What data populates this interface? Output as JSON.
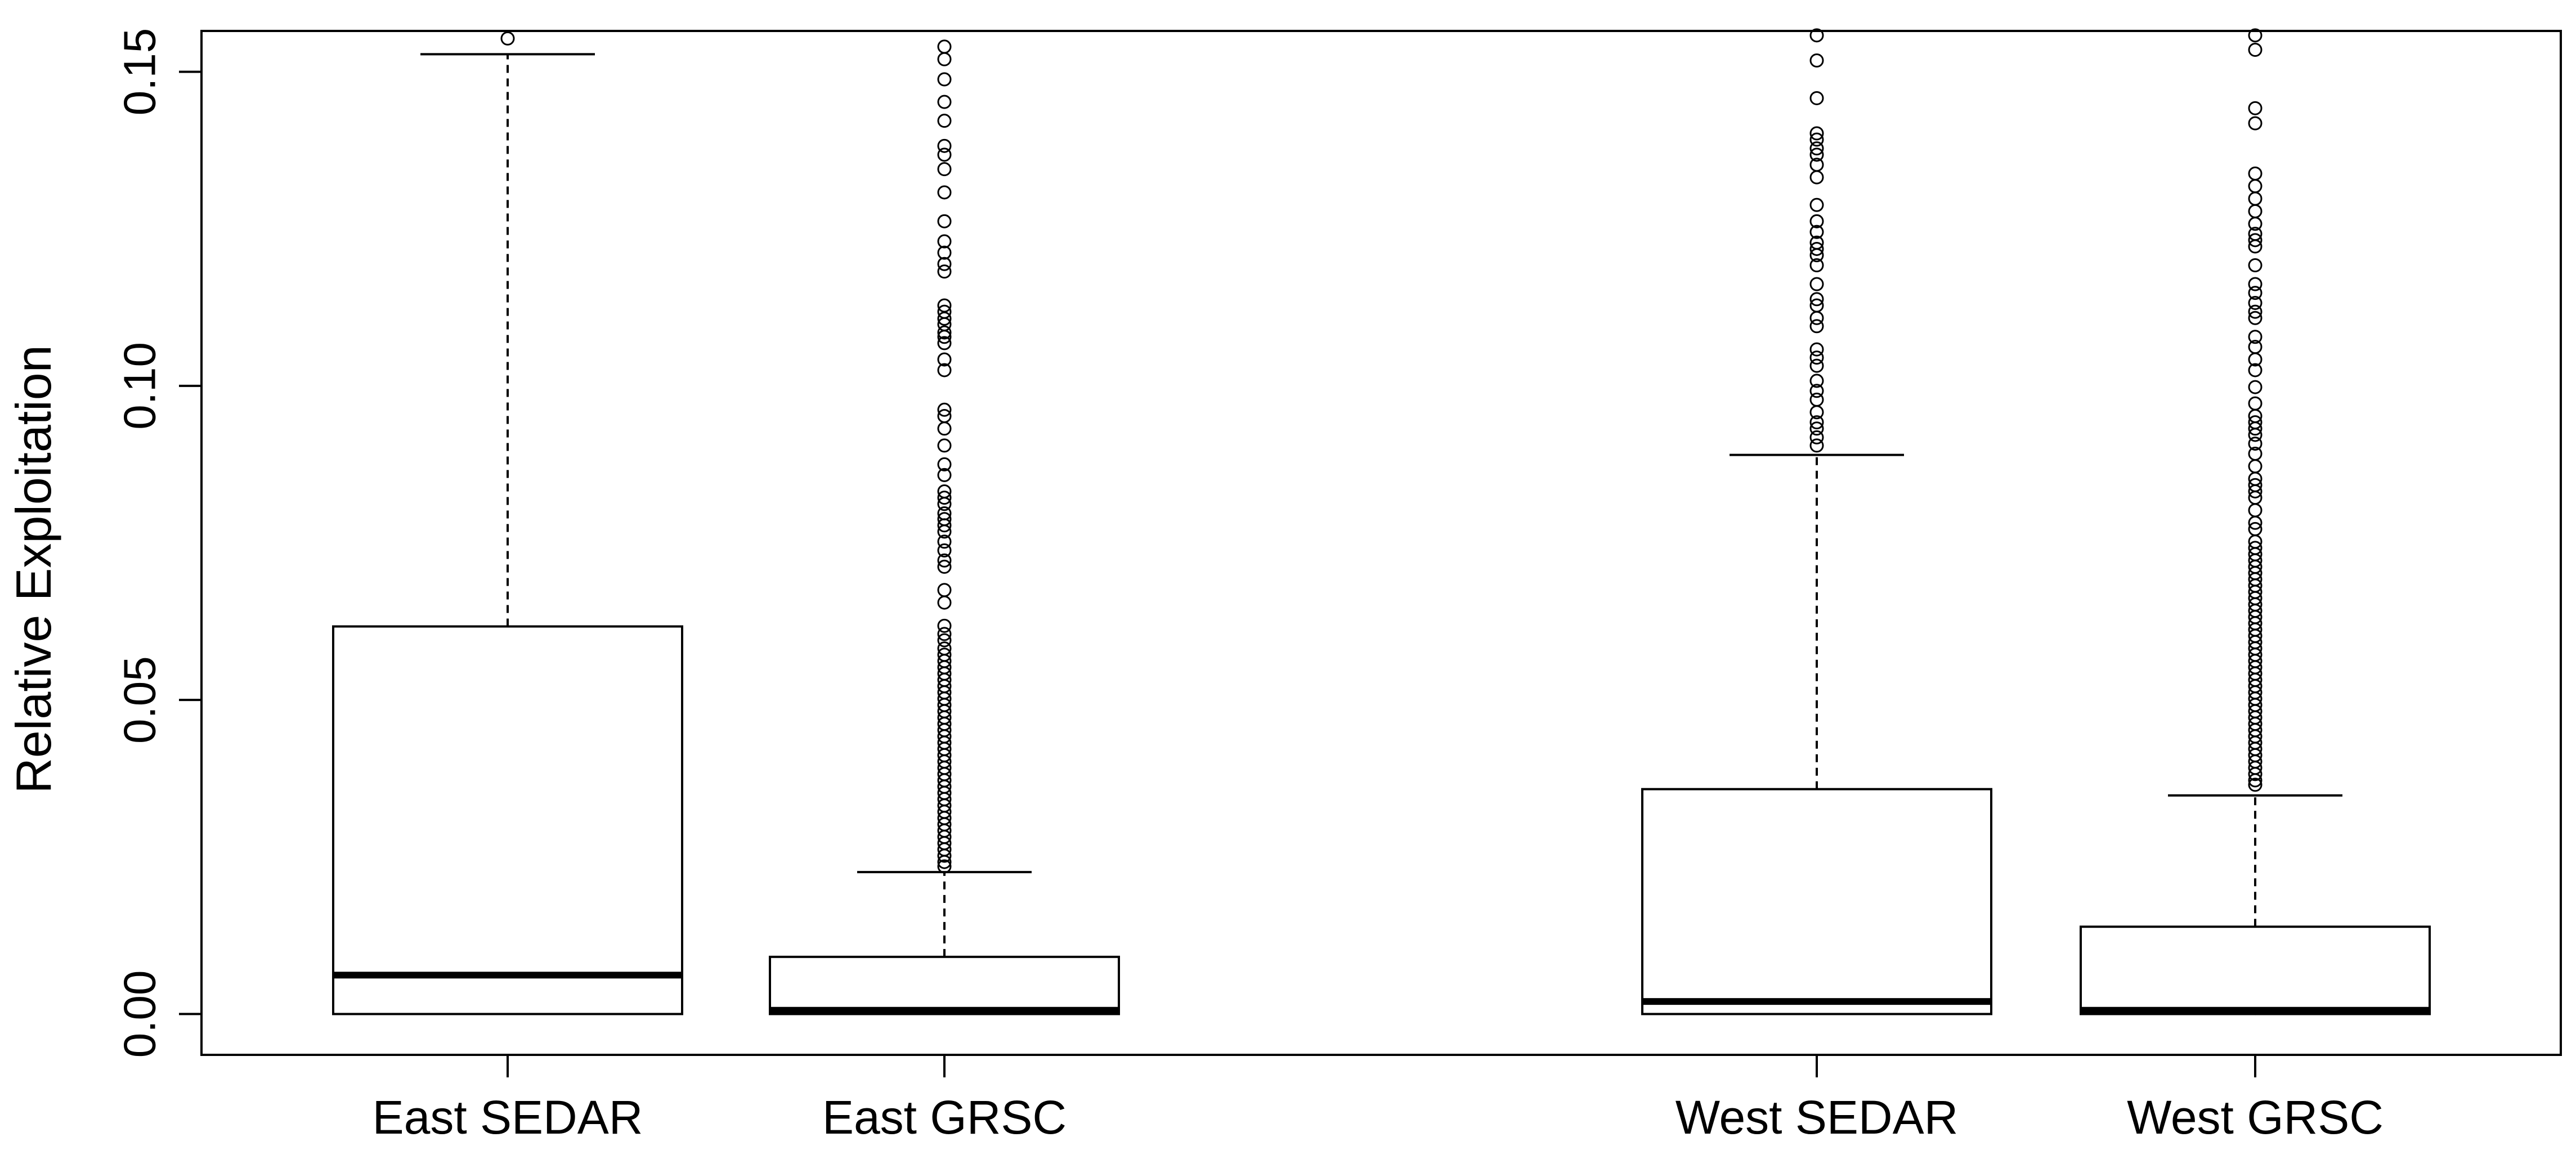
{
  "chart_data": {
    "type": "boxplot",
    "title": "",
    "xlabel": "",
    "ylabel": "Relative Exploitation",
    "ylim": [
      -0.0065,
      0.1565
    ],
    "yticks": [
      0.0,
      0.05,
      0.1,
      0.15
    ],
    "ytick_labels": [
      "0.00",
      "0.05",
      "0.10",
      "0.15"
    ],
    "grid": false,
    "categories": [
      "East SEDAR",
      "East GRSC",
      "West SEDAR",
      "West GRSC"
    ],
    "boxes": [
      {
        "name": "East SEDAR",
        "whisker_low": 0.0,
        "q1": 0.0,
        "median": 0.0062,
        "q3": 0.0617,
        "whisker_high": 0.1528,
        "outliers": [
          0.1553
        ]
      },
      {
        "name": "East GRSC",
        "whisker_low": 0.0,
        "q1": 0.0,
        "median": 0.0006,
        "q3": 0.0091,
        "whisker_high": 0.0226,
        "outliers": [
          0.154,
          0.152,
          0.1488,
          0.1452,
          0.1422,
          0.1382,
          0.1368,
          0.1345,
          0.1308,
          0.1262,
          0.123,
          0.1212,
          0.1194,
          0.1182,
          0.1128,
          0.1118,
          0.1107,
          0.1098,
          0.1085,
          0.1078,
          0.1068,
          0.1042,
          0.1025,
          0.0962,
          0.0952,
          0.0932,
          0.0905,
          0.0875,
          0.0858,
          0.0832,
          0.0822,
          0.0812,
          0.0797,
          0.0788,
          0.0778,
          0.0768,
          0.0752,
          0.0738,
          0.0722,
          0.0712,
          0.0675,
          0.0655,
          0.0618,
          0.0605,
          0.0595,
          0.0582,
          0.0572,
          0.0562,
          0.0552,
          0.0542,
          0.0532,
          0.0522,
          0.0512,
          0.0502,
          0.0492,
          0.0482,
          0.0472,
          0.0462,
          0.0452,
          0.0442,
          0.0432,
          0.0422,
          0.0412,
          0.0402,
          0.0392,
          0.0382,
          0.0372,
          0.0362,
          0.0352,
          0.0342,
          0.0332,
          0.0322,
          0.0312,
          0.0302,
          0.0292,
          0.0282,
          0.0272,
          0.0262,
          0.0252,
          0.0242,
          0.0235
        ]
      },
      {
        "name": "West SEDAR",
        "whisker_low": 0.0,
        "q1": 0.0,
        "median": 0.002,
        "q3": 0.0358,
        "whisker_high": 0.089,
        "outliers": [
          0.1558,
          0.1518,
          0.1458,
          0.1402,
          0.1392,
          0.1378,
          0.1368,
          0.1352,
          0.1332,
          0.1288,
          0.1262,
          0.1245,
          0.1228,
          0.1218,
          0.1208,
          0.1192,
          0.1162,
          0.1138,
          0.1128,
          0.1108,
          0.1095,
          0.1058,
          0.1045,
          0.1032,
          0.1008,
          0.0992,
          0.0978,
          0.0958,
          0.0942,
          0.0932,
          0.0918,
          0.0905
        ]
      },
      {
        "name": "West GRSC",
        "whisker_low": 0.0,
        "q1": 0.0,
        "median": 0.0006,
        "q3": 0.0139,
        "whisker_high": 0.0348,
        "outliers": [
          0.1558,
          0.1535,
          0.1442,
          0.1418,
          0.1338,
          0.1318,
          0.1298,
          0.1278,
          0.1258,
          0.1242,
          0.1232,
          0.1222,
          0.1192,
          0.1162,
          0.1148,
          0.1132,
          0.1118,
          0.1108,
          0.1078,
          0.1062,
          0.1042,
          0.1025,
          0.0998,
          0.0972,
          0.0952,
          0.0942,
          0.0932,
          0.0922,
          0.0908,
          0.0892,
          0.0872,
          0.0852,
          0.0842,
          0.0832,
          0.0822,
          0.0802,
          0.0782,
          0.0772,
          0.0752,
          0.0742,
          0.0732,
          0.0722,
          0.0712,
          0.0702,
          0.0692,
          0.0682,
          0.0672,
          0.0662,
          0.0652,
          0.0642,
          0.0632,
          0.0622,
          0.0612,
          0.0602,
          0.0592,
          0.0582,
          0.0572,
          0.0562,
          0.0552,
          0.0542,
          0.0532,
          0.0522,
          0.0512,
          0.0502,
          0.0492,
          0.0482,
          0.0472,
          0.0462,
          0.0452,
          0.0442,
          0.0432,
          0.0422,
          0.0412,
          0.0402,
          0.0392,
          0.0382,
          0.0372,
          0.0365
        ]
      }
    ]
  }
}
